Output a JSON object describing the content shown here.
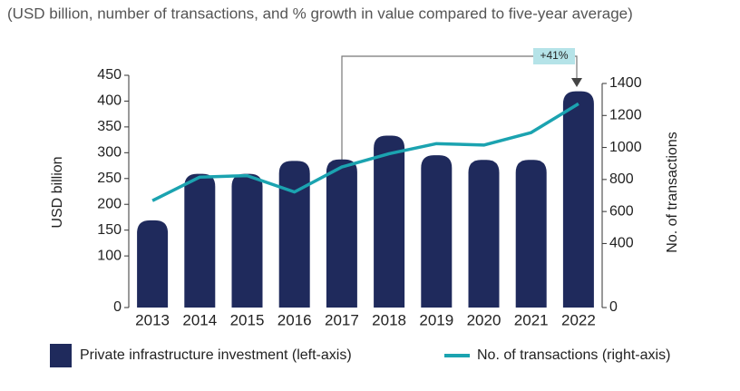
{
  "chart_data": {
    "type": "bar-line",
    "subtitle": "(USD billion, number of transactions, and % growth in value compared to five-year average)",
    "categories": [
      "2013",
      "2014",
      "2015",
      "2016",
      "2017",
      "2018",
      "2019",
      "2020",
      "2021",
      "2022"
    ],
    "series": [
      {
        "name": "Private infrastructure investment (left-axis)",
        "type": "bar",
        "color": "#1f2a5c",
        "values": [
          169,
          259,
          259,
          284,
          287,
          333,
          295,
          286,
          286,
          419
        ]
      },
      {
        "name": "No. of transactions (right-axis)",
        "type": "line",
        "axis": "y2",
        "color": "#1ba3b0",
        "values": [
          668,
          815,
          824,
          722,
          878,
          961,
          1024,
          1015,
          1093,
          1273
        ]
      }
    ],
    "y_label": "USD billion",
    "y2_label": "No. of transactions",
    "ylim": [
      0,
      450
    ],
    "yticks": [
      0,
      100,
      150,
      200,
      250,
      300,
      350,
      400,
      450
    ],
    "y2lim": [
      0,
      1400
    ],
    "y2ticks": [
      0,
      400,
      600,
      800,
      1000,
      1200,
      1400
    ],
    "annotation": "+41%"
  }
}
